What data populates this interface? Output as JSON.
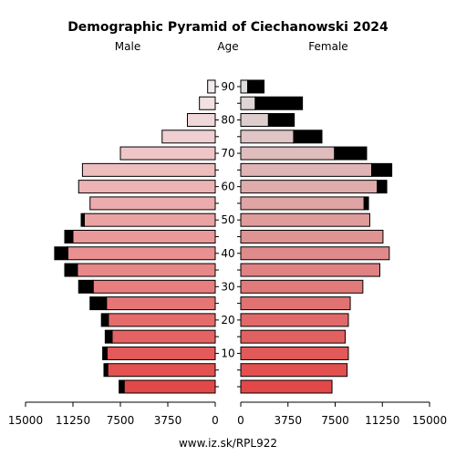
{
  "chart_data": {
    "type": "bar",
    "title": "Demographic Pyramid of Ciechanowski 2024",
    "left_label": "Male",
    "center_label": "Age",
    "right_label": "Female",
    "footer": "www.iz.sk/RPL922",
    "age_groups": [
      "0-4",
      "5-9",
      "10-14",
      "15-19",
      "20-24",
      "25-29",
      "30-34",
      "35-39",
      "40-44",
      "45-49",
      "50-54",
      "55-59",
      "60-64",
      "65-69",
      "70-74",
      "75-79",
      "80-84",
      "85-89",
      "90+"
    ],
    "age_tick_labels": [
      "10",
      "20",
      "30",
      "40",
      "50",
      "60",
      "70",
      "80",
      "90"
    ],
    "axis_ticks": {
      "left": [
        "15000",
        "11250",
        "7500",
        "3750",
        "0"
      ],
      "right": [
        "0",
        "3750",
        "7500",
        "11250",
        "15000"
      ]
    },
    "xlim": [
      0,
      15000
    ],
    "series": [
      {
        "name": "Male",
        "values": [
          7600,
          8800,
          8900,
          8700,
          9000,
          9900,
          10800,
          11900,
          12700,
          11900,
          10600,
          9900,
          10800,
          10500,
          7500,
          4200,
          2200,
          1250,
          600
        ],
        "excess": [
          400,
          300,
          350,
          550,
          550,
          1300,
          1150,
          1000,
          1050,
          650,
          250,
          0,
          0,
          0,
          0,
          0,
          0,
          0,
          0
        ]
      },
      {
        "name": "Female",
        "values": [
          7250,
          8450,
          8550,
          8300,
          8550,
          8700,
          9700,
          11050,
          11800,
          11300,
          10250,
          10150,
          11600,
          12000,
          10000,
          6450,
          4250,
          4900,
          1850
        ],
        "excess": [
          0,
          0,
          0,
          0,
          0,
          0,
          0,
          0,
          0,
          0,
          0,
          350,
          750,
          1600,
          2550,
          2250,
          2050,
          3750,
          1300
        ]
      }
    ],
    "colors": {
      "excess": "#000000",
      "outline": "#000000"
    }
  }
}
